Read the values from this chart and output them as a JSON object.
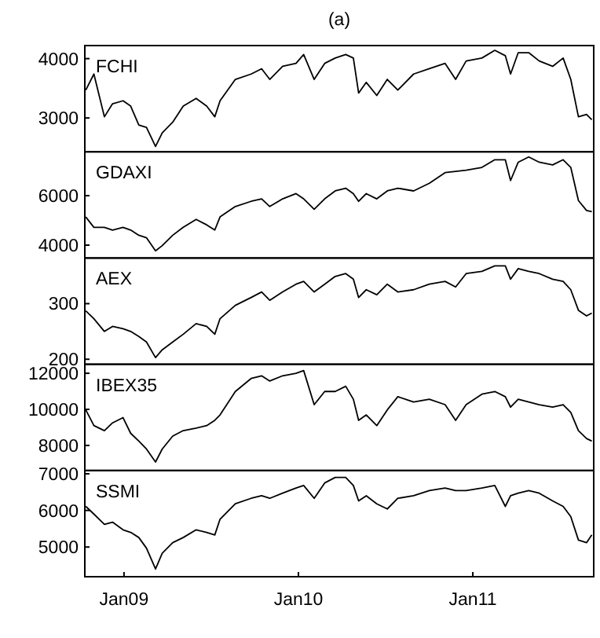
{
  "chart_data": [
    {
      "type": "line",
      "title": "(a)",
      "tick_labels": "y",
      "x": [
        "2008-10-13",
        "2008-10-30",
        "2008-11-21",
        "2008-12-08",
        "2008-12-30",
        "2009-01-15",
        "2009-02-01",
        "2009-02-17",
        "2009-03-08",
        "2009-03-22",
        "2009-04-13",
        "2009-05-05",
        "2009-06-01",
        "2009-06-23",
        "2009-07-10",
        "2009-07-21",
        "2009-08-22",
        "2009-09-24",
        "2009-10-16",
        "2009-11-02",
        "2009-11-29",
        "2009-12-27",
        "2010-01-12",
        "2010-02-03",
        "2010-02-25",
        "2010-03-19",
        "2010-04-10",
        "2010-04-26",
        "2010-05-07",
        "2010-05-23",
        "2010-06-14",
        "2010-07-06",
        "2010-07-28",
        "2010-08-30",
        "2010-10-02",
        "2010-11-04",
        "2010-11-26",
        "2010-12-18",
        "2011-01-20",
        "2011-02-16",
        "2011-03-10",
        "2011-03-21",
        "2011-04-06",
        "2011-04-28",
        "2011-05-20",
        "2011-06-17",
        "2011-07-09",
        "2011-07-25",
        "2011-08-10",
        "2011-08-27",
        "2011-09-07"
      ],
      "xlim": [
        "2008-10-11",
        "2011-09-11"
      ],
      "ylim": [
        2430,
        4220
      ],
      "yticks": [
        3000,
        4000
      ],
      "series": [
        {
          "name": "FCHI",
          "color": "#000000",
          "values": [
            3470,
            3740,
            3020,
            3240,
            3290,
            3200,
            2880,
            2840,
            2520,
            2750,
            2930,
            3200,
            3330,
            3200,
            3020,
            3290,
            3650,
            3740,
            3830,
            3650,
            3870,
            3920,
            4070,
            3650,
            3920,
            4010,
            4070,
            4010,
            3420,
            3600,
            3380,
            3650,
            3470,
            3740,
            3830,
            3920,
            3650,
            3960,
            4010,
            4140,
            4050,
            3740,
            4100,
            4100,
            3960,
            3870,
            4010,
            3650,
            3020,
            3060,
            2970
          ]
        }
      ]
    },
    {
      "type": "line",
      "tick_labels": "y",
      "x": [
        "2008-10-13",
        "2008-10-30",
        "2008-11-21",
        "2008-12-08",
        "2008-12-30",
        "2009-01-15",
        "2009-02-01",
        "2009-02-17",
        "2009-03-08",
        "2009-03-22",
        "2009-04-13",
        "2009-05-05",
        "2009-06-01",
        "2009-06-23",
        "2009-07-10",
        "2009-07-21",
        "2009-08-22",
        "2009-09-24",
        "2009-10-16",
        "2009-11-02",
        "2009-11-29",
        "2009-12-27",
        "2010-01-12",
        "2010-02-03",
        "2010-02-25",
        "2010-03-19",
        "2010-04-10",
        "2010-04-26",
        "2010-05-07",
        "2010-05-23",
        "2010-06-14",
        "2010-07-06",
        "2010-07-28",
        "2010-08-30",
        "2010-10-02",
        "2010-11-04",
        "2010-11-26",
        "2010-12-18",
        "2011-01-20",
        "2011-02-16",
        "2011-03-10",
        "2011-03-21",
        "2011-04-06",
        "2011-04-28",
        "2011-05-20",
        "2011-06-17",
        "2011-07-09",
        "2011-07-25",
        "2011-08-10",
        "2011-08-27",
        "2011-09-07"
      ],
      "xlim": [
        "2008-10-11",
        "2011-09-11"
      ],
      "ylim": [
        3480,
        7770
      ],
      "yticks": [
        4000,
        6000
      ],
      "series": [
        {
          "name": "GDAXI",
          "color": "#000000",
          "values": [
            5140,
            4720,
            4720,
            4610,
            4720,
            4610,
            4400,
            4300,
            3770,
            3980,
            4400,
            4720,
            5040,
            4820,
            4610,
            5140,
            5560,
            5770,
            5870,
            5560,
            5870,
            6080,
            5870,
            5450,
            5870,
            6190,
            6300,
            6080,
            5770,
            6080,
            5870,
            6190,
            6300,
            6190,
            6500,
            6930,
            6980,
            7030,
            7140,
            7450,
            7450,
            6610,
            7350,
            7560,
            7350,
            7240,
            7450,
            7140,
            5800,
            5400,
            5350
          ]
        }
      ]
    },
    {
      "type": "line",
      "tick_labels": "y",
      "x": [
        "2008-10-13",
        "2008-10-30",
        "2008-11-21",
        "2008-12-08",
        "2008-12-30",
        "2009-01-15",
        "2009-02-01",
        "2009-02-17",
        "2009-03-08",
        "2009-03-22",
        "2009-04-13",
        "2009-05-05",
        "2009-06-01",
        "2009-06-23",
        "2009-07-10",
        "2009-07-21",
        "2009-08-22",
        "2009-09-24",
        "2009-10-16",
        "2009-11-02",
        "2009-11-29",
        "2009-12-27",
        "2010-01-12",
        "2010-02-03",
        "2010-02-25",
        "2010-03-19",
        "2010-04-10",
        "2010-04-26",
        "2010-05-07",
        "2010-05-23",
        "2010-06-14",
        "2010-07-06",
        "2010-07-28",
        "2010-08-30",
        "2010-10-02",
        "2010-11-04",
        "2010-11-26",
        "2010-12-18",
        "2011-01-20",
        "2011-02-16",
        "2011-03-10",
        "2011-03-21",
        "2011-04-06",
        "2011-04-28",
        "2011-05-20",
        "2011-06-17",
        "2011-07-09",
        "2011-07-25",
        "2011-08-10",
        "2011-08-27",
        "2011-09-07"
      ],
      "xlim": [
        "2008-10-11",
        "2011-09-11"
      ],
      "ylim": [
        191,
        382
      ],
      "yticks": [
        200,
        300
      ],
      "series": [
        {
          "name": "AEX",
          "color": "#000000",
          "values": [
            287,
            273,
            250,
            259,
            255,
            250,
            241,
            231,
            203,
            217,
            231,
            245,
            264,
            259,
            245,
            273,
            297,
            311,
            321,
            306,
            321,
            335,
            340,
            321,
            335,
            349,
            354,
            344,
            311,
            325,
            316,
            335,
            321,
            325,
            335,
            340,
            330,
            354,
            358,
            368,
            368,
            344,
            363,
            358,
            354,
            344,
            340,
            325,
            288,
            278,
            283
          ]
        }
      ]
    },
    {
      "type": "line",
      "tick_labels": "y",
      "x": [
        "2008-10-13",
        "2008-10-30",
        "2008-11-21",
        "2008-12-08",
        "2008-12-30",
        "2009-01-15",
        "2009-02-01",
        "2009-02-17",
        "2009-03-08",
        "2009-03-22",
        "2009-04-13",
        "2009-05-05",
        "2009-06-01",
        "2009-06-23",
        "2009-07-10",
        "2009-07-21",
        "2009-08-22",
        "2009-09-24",
        "2009-10-16",
        "2009-11-02",
        "2009-11-29",
        "2009-12-27",
        "2010-01-12",
        "2010-02-03",
        "2010-02-25",
        "2010-03-19",
        "2010-04-10",
        "2010-04-26",
        "2010-05-07",
        "2010-05-23",
        "2010-06-14",
        "2010-07-06",
        "2010-07-28",
        "2010-08-30",
        "2010-10-02",
        "2010-11-04",
        "2010-11-26",
        "2010-12-18",
        "2011-01-20",
        "2011-02-16",
        "2011-03-10",
        "2011-03-21",
        "2011-04-06",
        "2011-04-28",
        "2011-05-20",
        "2011-06-17",
        "2011-07-09",
        "2011-07-25",
        "2011-08-10",
        "2011-08-27",
        "2011-09-07"
      ],
      "xlim": [
        "2008-10-11",
        "2011-09-11"
      ],
      "ylim": [
        6610,
        12500
      ],
      "yticks": [
        8000,
        10000,
        12000
      ],
      "series": [
        {
          "name": "IBEX35",
          "color": "#000000",
          "values": [
            9970,
            9100,
            8820,
            9250,
            9540,
            8670,
            8240,
            7800,
            7080,
            7800,
            8520,
            8820,
            8960,
            9100,
            9390,
            9690,
            10990,
            11710,
            11860,
            11570,
            11860,
            12000,
            12150,
            10260,
            10990,
            10990,
            11280,
            10560,
            9390,
            9690,
            9100,
            9970,
            10700,
            10410,
            10560,
            10260,
            9390,
            10260,
            10840,
            10990,
            10700,
            10120,
            10560,
            10410,
            10260,
            10120,
            10260,
            9830,
            8820,
            8380,
            8240
          ]
        }
      ]
    },
    {
      "type": "line",
      "x": [
        "2008-10-13",
        "2008-10-30",
        "2008-11-21",
        "2008-12-08",
        "2008-12-30",
        "2009-01-15",
        "2009-02-01",
        "2009-02-17",
        "2009-03-08",
        "2009-03-22",
        "2009-04-13",
        "2009-05-05",
        "2009-06-01",
        "2009-06-23",
        "2009-07-10",
        "2009-07-21",
        "2009-08-22",
        "2009-09-24",
        "2009-10-16",
        "2009-11-02",
        "2009-11-29",
        "2009-12-27",
        "2010-01-12",
        "2010-02-03",
        "2010-02-25",
        "2010-03-19",
        "2010-04-10",
        "2010-04-26",
        "2010-05-07",
        "2010-05-23",
        "2010-06-14",
        "2010-07-06",
        "2010-07-28",
        "2010-08-30",
        "2010-10-02",
        "2010-11-04",
        "2010-11-26",
        "2010-12-18",
        "2011-01-20",
        "2011-02-16",
        "2011-03-10",
        "2011-03-21",
        "2011-04-06",
        "2011-04-28",
        "2011-05-20",
        "2011-06-17",
        "2011-07-09",
        "2011-07-25",
        "2011-08-10",
        "2011-08-27",
        "2011-09-07"
      ],
      "xlim": [
        "2008-10-11",
        "2011-09-11"
      ],
      "xticks": [
        {
          "value": "2009-01-01",
          "label": "Jan09"
        },
        {
          "value": "2010-01-01",
          "label": "Jan10"
        },
        {
          "value": "2011-01-01",
          "label": "Jan11"
        }
      ],
      "ylim": [
        4190,
        7090
      ],
      "yticks": [
        5000,
        6000,
        7000
      ],
      "series": [
        {
          "name": "SSMI",
          "color": "#000000",
          "values": [
            6110,
            5900,
            5620,
            5680,
            5470,
            5400,
            5260,
            4970,
            4400,
            4830,
            5120,
            5260,
            5470,
            5400,
            5330,
            5760,
            6180,
            6330,
            6400,
            6330,
            6470,
            6610,
            6680,
            6330,
            6750,
            6900,
            6900,
            6680,
            6260,
            6400,
            6180,
            6040,
            6330,
            6400,
            6540,
            6610,
            6540,
            6540,
            6610,
            6680,
            6110,
            6400,
            6470,
            6540,
            6470,
            6260,
            6110,
            5830,
            5190,
            5120,
            5330
          ]
        }
      ]
    }
  ]
}
